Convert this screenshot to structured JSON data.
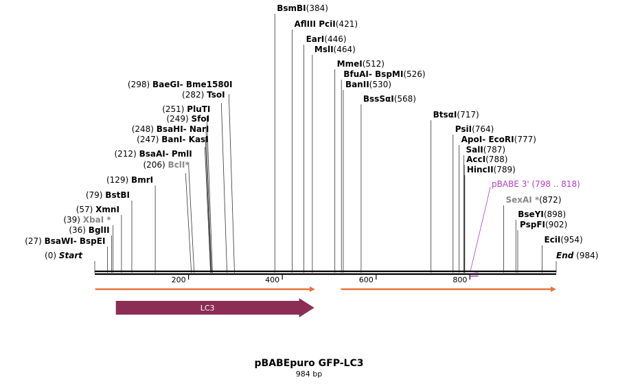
{
  "title": "pBABEpuro GFP-LC3",
  "length_label": "984 bp",
  "sequence_length": 984,
  "colors": {
    "orf_arrow": "#e8733a",
    "feature_lc3": "#8b2d55",
    "primer": "#b23cc8",
    "nonunique_site": "#888888",
    "backbone": "#000000"
  },
  "ticks": [
    "200",
    "400",
    "600",
    "800"
  ],
  "sites": [
    {
      "label_parts": [
        {
          "t": "BsmBI",
          "s": "b"
        },
        {
          "t": "(384)",
          "s": ""
        }
      ],
      "anchor": "start",
      "pos": 384
    },
    {
      "label_parts": [
        {
          "t": "AflIII  PciI",
          "s": "b"
        },
        {
          "t": "(421)",
          "s": ""
        }
      ],
      "anchor": "start",
      "pos": 421
    },
    {
      "label_parts": [
        {
          "t": "EarI",
          "s": "b"
        },
        {
          "t": "(446)",
          "s": ""
        }
      ],
      "anchor": "start",
      "pos": 446
    },
    {
      "label_parts": [
        {
          "t": "MslI",
          "s": "b"
        },
        {
          "t": "(464)",
          "s": ""
        }
      ],
      "anchor": "start",
      "pos": 464
    },
    {
      "label_parts": [
        {
          "t": "MmeI",
          "s": "b"
        },
        {
          "t": "(512)",
          "s": ""
        }
      ],
      "anchor": "start",
      "pos": 512
    },
    {
      "label_parts": [
        {
          "t": "BfuAI-  BspMI",
          "s": "b"
        },
        {
          "t": "(526)",
          "s": ""
        }
      ],
      "anchor": "start",
      "pos": 526
    },
    {
      "label_parts": [
        {
          "t": "BanII",
          "s": "b"
        },
        {
          "t": "(530)",
          "s": ""
        }
      ],
      "anchor": "start",
      "pos": 530
    },
    {
      "label_parts": [
        {
          "t": "BssSαI",
          "s": "b"
        },
        {
          "t": "(568)",
          "s": ""
        }
      ],
      "anchor": "start",
      "pos": 568
    },
    {
      "label_parts": [
        {
          "t": "(298)  ",
          "s": ""
        },
        {
          "t": "BaeGI-  Bme1580I",
          "s": "b"
        }
      ],
      "anchor": "end",
      "pos": 298
    },
    {
      "label_parts": [
        {
          "t": "(282)  ",
          "s": ""
        },
        {
          "t": "TsoI",
          "s": "b"
        }
      ],
      "anchor": "end",
      "pos": 282
    },
    {
      "label_parts": [
        {
          "t": "(251)  ",
          "s": ""
        },
        {
          "t": "PluTI",
          "s": "b"
        }
      ],
      "anchor": "end",
      "pos": 251
    },
    {
      "label_parts": [
        {
          "t": "(249)  ",
          "s": ""
        },
        {
          "t": "SfoI",
          "s": "b"
        }
      ],
      "anchor": "end",
      "pos": 249
    },
    {
      "label_parts": [
        {
          "t": "(248)  ",
          "s": ""
        },
        {
          "t": "BsaHI-  NarI",
          "s": "b"
        }
      ],
      "anchor": "end",
      "pos": 248
    },
    {
      "label_parts": [
        {
          "t": "(247)  ",
          "s": ""
        },
        {
          "t": "BanI-  KasI",
          "s": "b"
        }
      ],
      "anchor": "end",
      "pos": 247
    },
    {
      "label_parts": [
        {
          "t": "(212)  ",
          "s": ""
        },
        {
          "t": "BsaAI-  PmlI",
          "s": "b"
        }
      ],
      "anchor": "end",
      "pos": 212
    },
    {
      "label_parts": [
        {
          "t": "(206)  ",
          "s": ""
        },
        {
          "t": "BclI*",
          "s": "g"
        }
      ],
      "anchor": "end",
      "pos": 206
    },
    {
      "label_parts": [
        {
          "t": "(129)  ",
          "s": ""
        },
        {
          "t": "BmrI",
          "s": "b"
        }
      ],
      "anchor": "end",
      "pos": 129
    },
    {
      "label_parts": [
        {
          "t": "(79)  ",
          "s": ""
        },
        {
          "t": "BstBI",
          "s": "b"
        }
      ],
      "anchor": "end",
      "pos": 79
    },
    {
      "label_parts": [
        {
          "t": "(57)  ",
          "s": ""
        },
        {
          "t": "XmnI",
          "s": "b"
        }
      ],
      "anchor": "end",
      "pos": 57
    },
    {
      "label_parts": [
        {
          "t": "(39)  ",
          "s": ""
        },
        {
          "t": "XbaI *",
          "s": "g"
        }
      ],
      "anchor": "end",
      "pos": 39
    },
    {
      "label_parts": [
        {
          "t": "(36)  ",
          "s": ""
        },
        {
          "t": "BglII",
          "s": "b"
        }
      ],
      "anchor": "end",
      "pos": 36
    },
    {
      "label_parts": [
        {
          "t": "(27)  ",
          "s": ""
        },
        {
          "t": "BsaWI-  BspEI",
          "s": "b"
        }
      ],
      "anchor": "end",
      "pos": 27
    },
    {
      "label_parts": [
        {
          "t": "(0)  ",
          "s": ""
        },
        {
          "t": "Start",
          "s": "i"
        }
      ],
      "anchor": "end",
      "pos": 0
    },
    {
      "label_parts": [
        {
          "t": "BtsαI",
          "s": "b"
        },
        {
          "t": "(717)",
          "s": ""
        }
      ],
      "anchor": "start",
      "pos": 717
    },
    {
      "label_parts": [
        {
          "t": "PsiI",
          "s": "b"
        },
        {
          "t": "(764)",
          "s": ""
        }
      ],
      "anchor": "start",
      "pos": 764
    },
    {
      "label_parts": [
        {
          "t": "ApoI-  EcoRI",
          "s": "b"
        },
        {
          "t": "(777)",
          "s": ""
        }
      ],
      "anchor": "start",
      "pos": 777
    },
    {
      "label_parts": [
        {
          "t": "SalI",
          "s": "b"
        },
        {
          "t": "(787)",
          "s": ""
        }
      ],
      "anchor": "start",
      "pos": 787
    },
    {
      "label_parts": [
        {
          "t": "AccI",
          "s": "b"
        },
        {
          "t": "(788)",
          "s": ""
        }
      ],
      "anchor": "start",
      "pos": 788
    },
    {
      "label_parts": [
        {
          "t": "HincII",
          "s": "b"
        },
        {
          "t": "(789)",
          "s": ""
        }
      ],
      "anchor": "start",
      "pos": 789
    },
    {
      "label_parts": [
        {
          "t": "pBABE 3' (798 .. 818)",
          "s": "p"
        }
      ],
      "anchor": "start",
      "pos": 798
    },
    {
      "label_parts": [
        {
          "t": "SexAI *",
          "s": "g"
        },
        {
          "t": "(872)",
          "s": ""
        }
      ],
      "anchor": "start",
      "pos": 872
    },
    {
      "label_parts": [
        {
          "t": "BseYI",
          "s": "b"
        },
        {
          "t": "(898)",
          "s": ""
        }
      ],
      "anchor": "start",
      "pos": 898
    },
    {
      "label_parts": [
        {
          "t": "PspFI",
          "s": "b"
        },
        {
          "t": "(902)",
          "s": ""
        }
      ],
      "anchor": "start",
      "pos": 902
    },
    {
      "label_parts": [
        {
          "t": "EciI",
          "s": "b"
        },
        {
          "t": "(954)",
          "s": ""
        }
      ],
      "anchor": "start",
      "pos": 954
    },
    {
      "label_parts": [
        {
          "t": "End",
          "s": "i"
        },
        {
          "t": "  (984)",
          "s": ""
        }
      ],
      "anchor": "start",
      "pos": 984
    }
  ],
  "features": [
    {
      "label": "",
      "type": "orf",
      "start": 1,
      "end": 470
    },
    {
      "label": "",
      "type": "orf",
      "start": 525,
      "end": 984
    },
    {
      "label": "LC3",
      "type": "feature",
      "start": 45,
      "end": 468
    }
  ],
  "primers": [
    {
      "label": "pBABE 3'",
      "start": 798,
      "end": 818
    }
  ]
}
